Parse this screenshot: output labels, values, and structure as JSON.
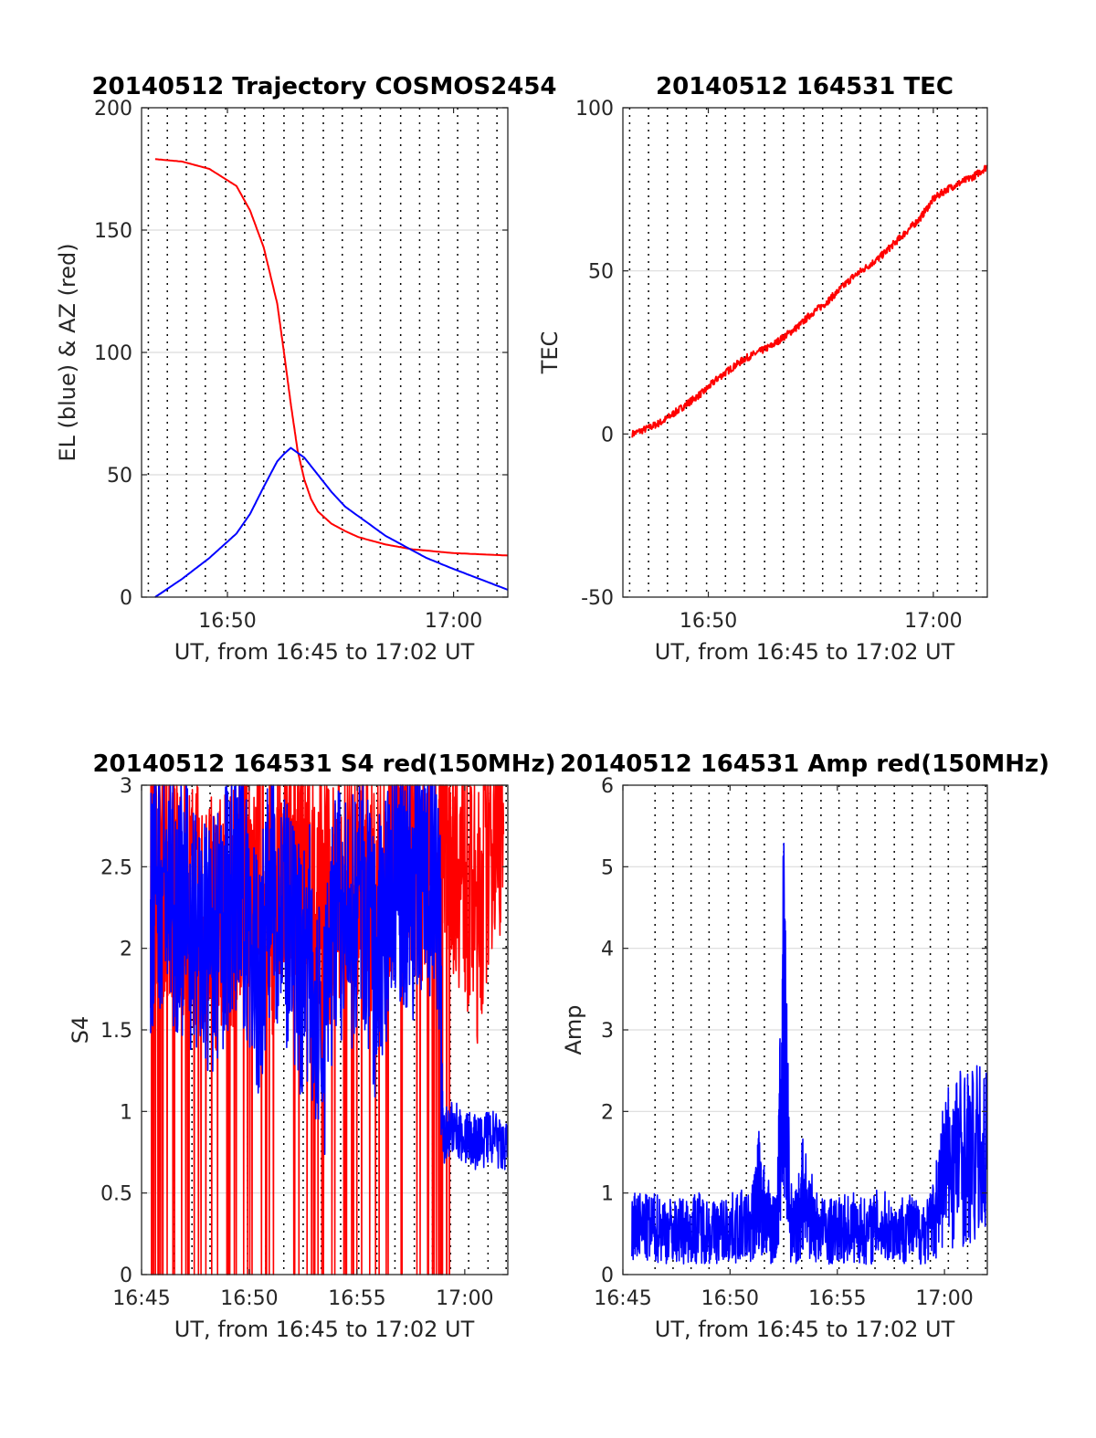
{
  "chart_data": [
    {
      "type": "line",
      "title": "20140512 Trajectory COSMOS2454",
      "xlabel": "UT, from 16:45 to 17:02 UT",
      "ylabel": "EL (blue) & AZ (red)",
      "xlim": [
        16.77,
        17.04
      ],
      "ylim": [
        0,
        200
      ],
      "xticks": [
        {
          "x": 16.8333,
          "label": "16:50"
        },
        {
          "x": 17.0,
          "label": "17:00"
        }
      ],
      "yticks": [
        0,
        50,
        100,
        150,
        200
      ],
      "vgrid_x": [
        16.775,
        16.789,
        16.803,
        16.817,
        16.832,
        16.846,
        16.86,
        16.875,
        16.889,
        16.904,
        16.918,
        16.932,
        16.946,
        16.961,
        16.975,
        16.989,
        17.003,
        17.018,
        17.032
      ],
      "grid": true,
      "series": [
        {
          "name": "AZ",
          "color": "#ff0000",
          "x": [
            16.78,
            16.8,
            16.82,
            16.84,
            16.85,
            16.86,
            16.87,
            16.875,
            16.88,
            16.885,
            16.89,
            16.895,
            16.9,
            16.91,
            16.92,
            16.93,
            16.95,
            16.97,
            17.0,
            17.04
          ],
          "values": [
            179,
            178,
            175,
            168,
            158,
            143,
            120,
            100,
            79,
            60,
            48,
            40,
            35,
            30,
            27,
            24.5,
            21.5,
            19.5,
            18,
            17
          ]
        },
        {
          "name": "EL",
          "color": "#0000ff",
          "x": [
            16.78,
            16.8,
            16.82,
            16.84,
            16.85,
            16.86,
            16.87,
            16.875,
            16.88,
            16.89,
            16.9,
            16.91,
            16.92,
            16.95,
            16.98,
            17.0,
            17.04
          ],
          "values": [
            0,
            7.5,
            16,
            26,
            34,
            45,
            55.5,
            58.5,
            61,
            57,
            50,
            43,
            37,
            25,
            16,
            11.5,
            3
          ]
        }
      ]
    },
    {
      "type": "line",
      "title": "20140512 164531 TEC",
      "xlabel": "UT, from 16:45 to 17:02 UT",
      "ylabel": "TEC",
      "xlim": [
        16.77,
        17.04
      ],
      "ylim": [
        -50,
        100
      ],
      "xticks": [
        {
          "x": 16.8333,
          "label": "16:50"
        },
        {
          "x": 17.0,
          "label": "17:00"
        }
      ],
      "yticks": [
        -50,
        0,
        50,
        100
      ],
      "vgrid_x": [
        16.775,
        16.789,
        16.803,
        16.817,
        16.832,
        16.846,
        16.86,
        16.875,
        16.889,
        16.904,
        16.918,
        16.932,
        16.946,
        16.961,
        16.975,
        16.989,
        17.003,
        17.018,
        17.032
      ],
      "grid": true,
      "series": [
        {
          "name": "TEC",
          "color": "#ff0000",
          "x": [
            16.777,
            16.79,
            16.8,
            16.81,
            16.82,
            16.83,
            16.84,
            16.85,
            16.86,
            16.87,
            16.88,
            16.89,
            16.9,
            16.91,
            16.92,
            16.93,
            16.94,
            16.95,
            16.96,
            16.97,
            16.98,
            16.99,
            17.0,
            17.01,
            17.02,
            17.03,
            17.04
          ],
          "values": [
            0,
            2,
            4,
            7,
            10,
            13,
            17,
            20,
            23,
            25,
            27,
            30,
            33,
            37,
            40,
            44,
            48,
            51,
            54,
            58,
            62,
            66,
            72,
            75,
            77,
            79,
            82
          ]
        }
      ]
    },
    {
      "type": "line",
      "title": "20140512 164531 S4 red(150MHz)",
      "xlabel": "UT, from 16:45 to 17:02 UT",
      "ylabel": "S4",
      "xlim": [
        16.75,
        17.0333
      ],
      "ylim": [
        0,
        3
      ],
      "xticks": [
        {
          "x": 16.75,
          "label": "16:45"
        },
        {
          "x": 16.8333,
          "label": "16:50"
        },
        {
          "x": 16.9167,
          "label": "16:55"
        },
        {
          "x": 17.0,
          "label": "17:00"
        }
      ],
      "yticks": [
        0,
        0.5,
        1,
        1.5,
        2,
        2.5,
        3
      ],
      "vgrid_x": [
        16.775,
        16.789,
        16.803,
        16.817,
        16.832,
        16.846,
        16.86,
        16.875,
        16.889,
        16.904,
        16.918,
        16.932,
        16.946,
        16.961,
        16.975,
        16.989,
        17.003,
        17.018,
        17.032
      ],
      "grid": true,
      "series": [
        {
          "name": "red",
          "color": "#ff0000",
          "x": [
            16.757,
            16.76,
            16.77,
            16.78,
            16.79,
            16.8,
            16.81,
            16.82,
            16.83,
            16.84,
            16.85,
            16.86,
            16.87,
            16.88,
            16.89,
            16.9,
            16.91,
            16.92,
            16.93,
            16.94,
            16.95,
            16.96,
            16.97,
            16.98,
            16.983,
            16.99,
            17.0,
            17.01,
            17.02,
            17.03
          ],
          "values": [
            2.2,
            2.4,
            2.3,
            2.2,
            2.1,
            2.0,
            2.0,
            2.1,
            2.3,
            2.4,
            2.1,
            2.2,
            2.5,
            2.3,
            2.2,
            2.1,
            2.4,
            2.3,
            2.2,
            2.4,
            2.5,
            2.3,
            2.5,
            2.6,
            2.8,
            2.5,
            2.3,
            2.0,
            2.6,
            2.7
          ]
        },
        {
          "name": "blue",
          "color": "#0000ff",
          "x": [
            16.757,
            16.76,
            16.77,
            16.78,
            16.79,
            16.8,
            16.81,
            16.82,
            16.83,
            16.84,
            16.85,
            16.86,
            16.87,
            16.88,
            16.89,
            16.9,
            16.91,
            16.92,
            16.93,
            16.94,
            16.95,
            16.96,
            16.97,
            16.98,
            16.983,
            16.99,
            17.0,
            17.01,
            17.02,
            17.033
          ],
          "values": [
            2.0,
            2.3,
            2.2,
            2.1,
            2.0,
            1.8,
            1.9,
            2.2,
            2.1,
            1.6,
            2.3,
            2.0,
            1.7,
            1.8,
            1.2,
            2.1,
            1.9,
            2.2,
            1.7,
            2.1,
            2.3,
            2.2,
            2.4,
            2.2,
            0.85,
            0.9,
            0.85,
            0.8,
            0.85,
            0.75
          ]
        }
      ]
    },
    {
      "type": "line",
      "title": "20140512 164531 Amp red(150MHz)",
      "xlabel": "UT, from 16:45 to 17:02 UT",
      "ylabel": "Amp",
      "xlim": [
        16.75,
        17.0333
      ],
      "ylim": [
        0,
        6
      ],
      "xticks": [
        {
          "x": 16.75,
          "label": "16:45"
        },
        {
          "x": 16.8333,
          "label": "16:50"
        },
        {
          "x": 16.9167,
          "label": "16:55"
        },
        {
          "x": 17.0,
          "label": "17:00"
        }
      ],
      "yticks": [
        0,
        1,
        2,
        3,
        4,
        5,
        6
      ],
      "vgrid_x": [
        16.775,
        16.789,
        16.803,
        16.817,
        16.832,
        16.846,
        16.86,
        16.875,
        16.889,
        16.904,
        16.918,
        16.932,
        16.946,
        16.961,
        16.975,
        16.989,
        17.003,
        17.018,
        17.032
      ],
      "grid": true,
      "series": [
        {
          "name": "blue",
          "color": "#0000ff",
          "x": [
            16.757,
            16.76,
            16.77,
            16.78,
            16.79,
            16.8,
            16.81,
            16.82,
            16.83,
            16.84,
            16.85,
            16.855,
            16.86,
            16.865,
            16.87,
            16.875,
            16.88,
            16.885,
            16.89,
            16.9,
            16.91,
            16.92,
            16.93,
            16.94,
            16.95,
            16.96,
            16.97,
            16.98,
            16.99,
            17.0,
            17.01,
            17.02,
            17.033
          ],
          "values": [
            0.8,
            0.9,
            0.85,
            0.9,
            0.8,
            0.85,
            0.9,
            0.8,
            0.85,
            0.9,
            0.9,
            1.6,
            1.2,
            0.9,
            0.9,
            4.9,
            1.0,
            0.9,
            1.5,
            0.9,
            0.8,
            0.85,
            0.9,
            0.8,
            0.95,
            0.8,
            0.9,
            0.8,
            0.9,
            2.0,
            2.3,
            2.2,
            2.3
          ]
        }
      ]
    }
  ]
}
